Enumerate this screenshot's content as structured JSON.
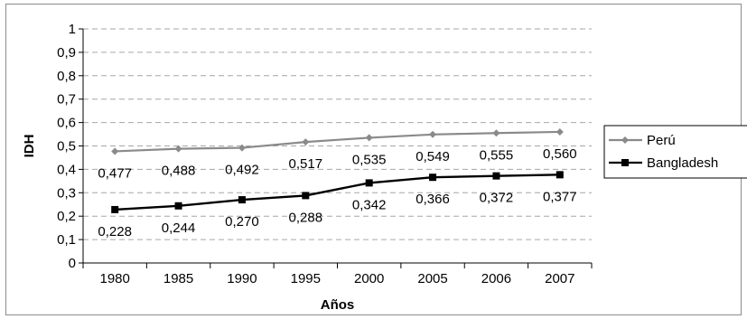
{
  "chart_data": {
    "type": "line",
    "title": "",
    "xlabel": "Años",
    "ylabel": "IDH",
    "categories": [
      "1980",
      "1985",
      "1990",
      "1995",
      "2000",
      "2005",
      "2006",
      "2007"
    ],
    "ylim": [
      0,
      1
    ],
    "yticks": [
      "0",
      "0,1",
      "0,2",
      "0,3",
      "0,4",
      "0,5",
      "0,6",
      "0,7",
      "0,8",
      "0,9",
      "1"
    ],
    "grid": true,
    "legend_position": "right",
    "series": [
      {
        "name": "Perú",
        "marker": "diamond",
        "color": "#8a8a8a",
        "values": [
          0.477,
          0.488,
          0.492,
          0.517,
          0.535,
          0.549,
          0.555,
          0.56
        ],
        "labels": [
          "0,477",
          "0,488",
          "0,492",
          "0,517",
          "0,535",
          "0,549",
          "0,555",
          "0,560"
        ]
      },
      {
        "name": "Bangladesh",
        "marker": "square",
        "color": "#000000",
        "values": [
          0.228,
          0.244,
          0.27,
          0.288,
          0.342,
          0.366,
          0.372,
          0.377
        ],
        "labels": [
          "0,228",
          "0,244",
          "0,270",
          "0,288",
          "0,342",
          "0,366",
          "0,372",
          "0,377"
        ]
      }
    ]
  }
}
